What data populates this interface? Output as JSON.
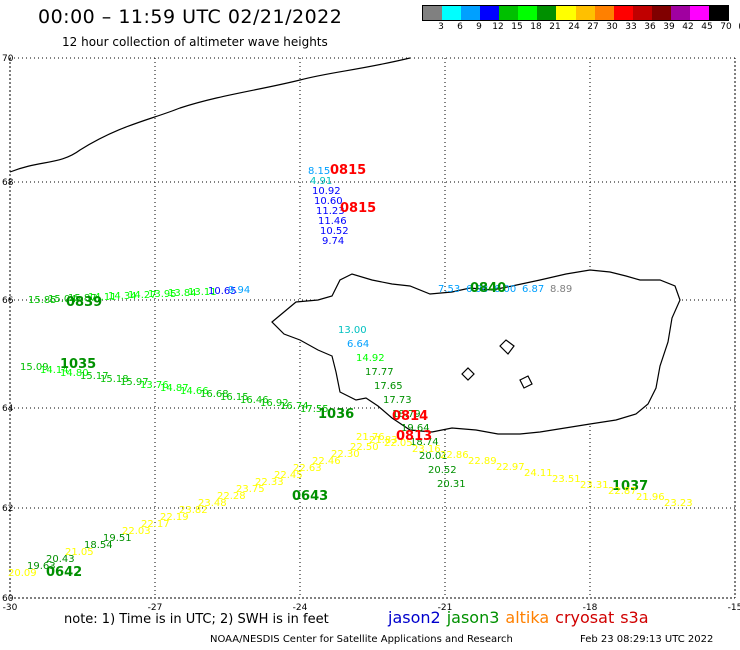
{
  "title": "00:00 – 11:59 UTC 02/21/2022",
  "subtitle": "12 hour collection of altimeter wave heights",
  "colorbar": {
    "colors": [
      "#808080",
      "#00ffff",
      "#00a0ff",
      "#0000ff",
      "#00c000",
      "#00ff00",
      "#009000",
      "#ffff00",
      "#ffc000",
      "#ff8000",
      "#ff0000",
      "#c00000",
      "#800000",
      "#a000a0",
      "#ff00ff",
      "#000000"
    ],
    "labels": [
      "3",
      "6",
      "9",
      "12",
      "15",
      "18",
      "21",
      "24",
      "27",
      "30",
      "33",
      "36",
      "39",
      "42",
      "45",
      "70",
      "(ft)"
    ]
  },
  "map": {
    "lat_labels": [
      "70",
      "68",
      "66",
      "64",
      "62",
      "60"
    ],
    "lon_labels": [
      "-30",
      "-27",
      "-24",
      "-21",
      "-18",
      "-15"
    ]
  },
  "tracks": [
    {
      "pts": [
        [
          "8.15",
          "#00a0ff"
        ],
        [
          "4.91",
          "#00c0c0"
        ],
        [
          "10.92",
          "#0000ff"
        ],
        [
          "10.60",
          "#0000ff"
        ],
        [
          "11.23",
          "#0000ff"
        ],
        [
          "11.46",
          "#0000ff"
        ],
        [
          "10.52",
          "#0000ff"
        ],
        [
          "9.74",
          "#0000ff"
        ]
      ],
      "times": [
        [
          "0815",
          "#ff0000"
        ],
        [
          "0815",
          "#ff0000"
        ]
      ]
    },
    {
      "pts": [
        [
          "15.85",
          "#00c000"
        ],
        [
          "15.04",
          "#00c000"
        ],
        [
          "15.87",
          "#00c000"
        ],
        [
          "14.11",
          "#00ff00"
        ],
        [
          "14.34",
          "#00ff00"
        ],
        [
          "14.27",
          "#00ff00"
        ],
        [
          "13.95",
          "#00ff00"
        ],
        [
          "13.84",
          "#00ff00"
        ],
        [
          "13.11",
          "#00ff00"
        ],
        [
          "10.65",
          "#0000ff"
        ],
        [
          "9.94",
          "#00a0ff"
        ]
      ],
      "times": [
        [
          "0839",
          "#009000"
        ]
      ]
    },
    {
      "pts": [
        [
          "7.53",
          "#00a0ff"
        ],
        [
          "6.98",
          "#00a0ff"
        ],
        [
          "6.00",
          "#00a0ff"
        ],
        [
          "6.87",
          "#00a0ff"
        ],
        [
          "8.89",
          "#808080"
        ]
      ],
      "times": [
        [
          "0840",
          "#009000"
        ]
      ]
    },
    {
      "pts": [
        [
          "15.09",
          "#00c000"
        ],
        [
          "14.14",
          "#00ff00"
        ],
        [
          "14.80",
          "#00ff00"
        ],
        [
          "15.17",
          "#00c000"
        ],
        [
          "15.18",
          "#00c000"
        ],
        [
          "15.97",
          "#00c000"
        ],
        [
          "13.76",
          "#00ff00"
        ],
        [
          "14.87",
          "#00ff00"
        ],
        [
          "14.66",
          "#00ff00"
        ],
        [
          "16.68",
          "#00c000"
        ],
        [
          "16.15",
          "#00c000"
        ],
        [
          "16.46",
          "#00c000"
        ],
        [
          "16.92",
          "#00c000"
        ],
        [
          "16.74",
          "#00c000"
        ],
        [
          "17.55",
          "#00c000"
        ]
      ],
      "times": [
        [
          "1035",
          "#009000"
        ],
        [
          "1036",
          "#009000"
        ]
      ]
    },
    {
      "pts": [
        [
          "13.00",
          "#00c0c0"
        ],
        [
          "6.64",
          "#00a0ff"
        ],
        [
          "14.92",
          "#00ff00"
        ],
        [
          "17.77",
          "#009000"
        ],
        [
          "17.65",
          "#009000"
        ],
        [
          "17.73",
          "#009000"
        ],
        [
          "18.79",
          "#009000"
        ],
        [
          "19.64",
          "#009000"
        ],
        [
          "18.74",
          "#009000"
        ],
        [
          "20.01",
          "#009000"
        ],
        [
          "20.52",
          "#009000"
        ],
        [
          "20.31",
          "#009000"
        ]
      ],
      "times": [
        [
          "1037",
          "#009000"
        ]
      ]
    },
    {
      "pts": [
        [
          "21.76",
          "#ffff00"
        ],
        [
          "22.05",
          "#ffff00"
        ],
        [
          "23.16",
          "#ffff00"
        ],
        [
          "22.86",
          "#ffff00"
        ],
        [
          "22.89",
          "#ffff00"
        ],
        [
          "22.97",
          "#ffff00"
        ],
        [
          "24.11",
          "#ffff00"
        ],
        [
          "23.51",
          "#ffff00"
        ],
        [
          "23.31",
          "#ffff00"
        ],
        [
          "22.87",
          "#ffff00"
        ],
        [
          "21.96",
          "#ffff00"
        ],
        [
          "23.23",
          "#ffff00"
        ]
      ],
      "times": [
        [
          "0814",
          "#ff0000"
        ],
        [
          "0813",
          "#ff0000"
        ]
      ]
    },
    {
      "pts": [
        [
          "20.09",
          "#ffff00"
        ],
        [
          "19.63",
          "#009000"
        ],
        [
          "20.43",
          "#009000"
        ],
        [
          "21.05",
          "#ffff00"
        ],
        [
          "18.54",
          "#009000"
        ],
        [
          "19.51",
          "#009000"
        ],
        [
          "22.03",
          "#ffff00"
        ],
        [
          "22.17",
          "#ffff00"
        ],
        [
          "22.19",
          "#ffff00"
        ],
        [
          "23.82",
          "#ffff00"
        ],
        [
          "23.48",
          "#ffff00"
        ],
        [
          "22.28",
          "#ffff00"
        ],
        [
          "23.75",
          "#ffff00"
        ],
        [
          "22.33",
          "#ffff00"
        ],
        [
          "22.45",
          "#ffff00"
        ],
        [
          "22.63",
          "#ffff00"
        ],
        [
          "22.46",
          "#ffff00"
        ],
        [
          "22.30",
          "#ffff00"
        ],
        [
          "22.50",
          "#ffff00"
        ],
        [
          "21.83",
          "#ffff00"
        ]
      ],
      "times": [
        [
          "0642",
          "#009000"
        ],
        [
          "0643",
          "#009000"
        ]
      ]
    }
  ],
  "note": "note: 1) Time is in UTC; 2) SWH is in feet",
  "satellites": [
    {
      "name": "jason2",
      "color": "#0000cc"
    },
    {
      "name": "jason3",
      "color": "#009000"
    },
    {
      "name": "altika",
      "color": "#ff8000"
    },
    {
      "name": "cryosat",
      "color": "#d00000"
    },
    {
      "name": "s3a",
      "color": "#d00000"
    }
  ],
  "credit": "NOAA/NESDIS Center for Satellite Applications and Research",
  "stamp": "Feb 23 08:29:13 UTC 2022"
}
